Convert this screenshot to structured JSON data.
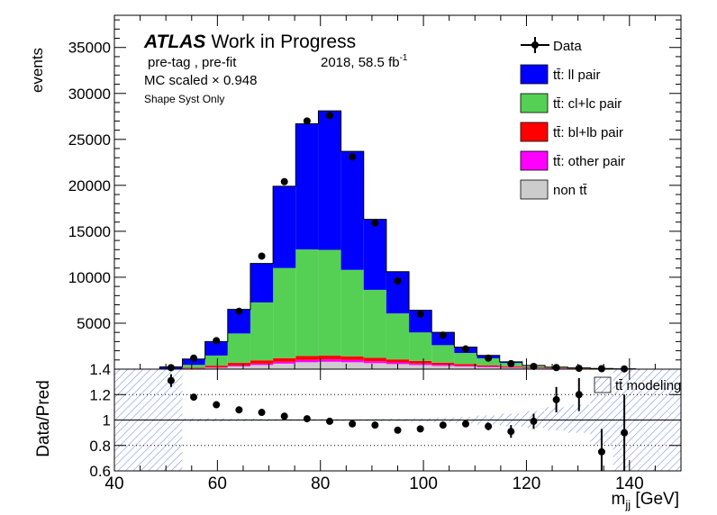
{
  "chart_data": {
    "type": "bar",
    "stacked": true,
    "title_lines": {
      "atlas": "ATLAS",
      "status": "Work in Progress",
      "selection": "pre-tag ,  pre-fit",
      "lumi": "2018, 58.5 fb",
      "lumi_sup": "-1",
      "mc_scale": "MC scaled × 0.948",
      "syst": "Shape Syst Only"
    },
    "xlabel_main": "m",
    "xlabel_sub": "jj",
    "xlabel_unit": " [GeV]",
    "ylabel_top": "events",
    "ylabel_bottom": "Data/Pred",
    "xlim": [
      40,
      150
    ],
    "ylim_top": [
      0,
      38500
    ],
    "ylim_bottom": [
      0.6,
      1.4
    ],
    "xticks": [
      40,
      60,
      80,
      100,
      120,
      140
    ],
    "yticks_top": [
      5000,
      10000,
      15000,
      20000,
      25000,
      30000,
      35000
    ],
    "yticks_bottom": [
      0.6,
      0.8,
      1,
      1.2,
      1.4
    ],
    "yticks_bottom_labels": [
      "0.6",
      "0.8",
      "1",
      "1.2",
      "1.4"
    ],
    "bin_edges": [
      40,
      44.4,
      48.8,
      53.2,
      57.6,
      62,
      66.4,
      70.8,
      75.2,
      79.6,
      84,
      88.4,
      92.8,
      97.2,
      101.6,
      106,
      110.4,
      114.8,
      119.2,
      123.6,
      128,
      132.4,
      136.8,
      141.2,
      145.6,
      150
    ],
    "bin_centers": [
      42.2,
      46.6,
      51,
      55.4,
      59.8,
      64.2,
      68.6,
      73,
      77.4,
      81.8,
      86.2,
      90.6,
      95,
      99.4,
      103.8,
      108.2,
      112.6,
      117,
      121.4,
      125.8,
      130.2,
      134.6,
      139,
      143.4,
      147.8
    ],
    "series": [
      {
        "name": "non tt̄",
        "color": "#cccccc",
        "values": [
          0,
          0,
          5,
          60,
          150,
          300,
          450,
          600,
          750,
          800,
          750,
          650,
          550,
          450,
          350,
          280,
          210,
          150,
          100,
          70,
          45,
          30,
          15,
          5,
          0
        ]
      },
      {
        "name": "tt̄: other pair",
        "color": "#ff00ff",
        "values": [
          0,
          0,
          0,
          20,
          50,
          100,
          150,
          200,
          250,
          260,
          250,
          220,
          190,
          160,
          130,
          100,
          80,
          60,
          40,
          25,
          15,
          10,
          5,
          0,
          0
        ]
      },
      {
        "name": "tt̄: bl+lb pair",
        "color": "#ff0000",
        "values": [
          0,
          0,
          5,
          80,
          180,
          280,
          360,
          400,
          420,
          420,
          400,
          360,
          320,
          280,
          230,
          180,
          130,
          90,
          60,
          40,
          25,
          15,
          8,
          0,
          0
        ]
      },
      {
        "name": "tt̄: cl+lc pair",
        "color": "#55d055",
        "values": [
          0,
          0,
          40,
          300,
          1100,
          3200,
          6300,
          9800,
          11600,
          11500,
          9400,
          7400,
          5000,
          3100,
          1900,
          1200,
          760,
          370,
          170,
          85,
          45,
          20,
          10,
          0,
          0
        ]
      },
      {
        "name": "tt̄: ll pair",
        "color": "#0000ff",
        "values": [
          0,
          0,
          190,
          640,
          1520,
          2620,
          4240,
          8900,
          13680,
          15120,
          12900,
          7670,
          4540,
          2410,
          1390,
          640,
          320,
          130,
          30,
          0,
          0,
          0,
          0,
          0,
          0
        ]
      }
    ],
    "data_label": "Data",
    "data_points": [
      {
        "x": 51,
        "y": 160
      },
      {
        "x": 55.4,
        "y": 1200
      },
      {
        "x": 59.8,
        "y": 3100
      },
      {
        "x": 64.2,
        "y": 6300
      },
      {
        "x": 68.6,
        "y": 12300
      },
      {
        "x": 73,
        "y": 20400
      },
      {
        "x": 77.4,
        "y": 27000
      },
      {
        "x": 81.8,
        "y": 27600
      },
      {
        "x": 86.2,
        "y": 23100
      },
      {
        "x": 90.6,
        "y": 15900
      },
      {
        "x": 95,
        "y": 9600
      },
      {
        "x": 99.4,
        "y": 6000
      },
      {
        "x": 103.8,
        "y": 3700
      },
      {
        "x": 108.2,
        "y": 2200
      },
      {
        "x": 112.6,
        "y": 1200
      },
      {
        "x": 117,
        "y": 600
      },
      {
        "x": 121.4,
        "y": 300
      },
      {
        "x": 125.8,
        "y": 170
      },
      {
        "x": 130.2,
        "y": 90
      },
      {
        "x": 134.6,
        "y": 50
      },
      {
        "x": 139,
        "y": 30
      }
    ],
    "ratio_points": [
      {
        "x": 51,
        "y": 1.31,
        "err": 0.05
      },
      {
        "x": 55.4,
        "y": 1.18,
        "err": 0.01
      },
      {
        "x": 59.8,
        "y": 1.12,
        "err": 0.01
      },
      {
        "x": 64.2,
        "y": 1.08,
        "err": 0.01
      },
      {
        "x": 68.6,
        "y": 1.06,
        "err": 0.01
      },
      {
        "x": 73,
        "y": 1.03,
        "err": 0.01
      },
      {
        "x": 77.4,
        "y": 1.01,
        "err": 0.01
      },
      {
        "x": 81.8,
        "y": 0.99,
        "err": 0.01
      },
      {
        "x": 86.2,
        "y": 0.97,
        "err": 0.01
      },
      {
        "x": 90.6,
        "y": 0.96,
        "err": 0.01
      },
      {
        "x": 95,
        "y": 0.92,
        "err": 0.01
      },
      {
        "x": 99.4,
        "y": 0.93,
        "err": 0.01
      },
      {
        "x": 103.8,
        "y": 0.96,
        "err": 0.015
      },
      {
        "x": 108.2,
        "y": 0.97,
        "err": 0.02
      },
      {
        "x": 112.6,
        "y": 0.95,
        "err": 0.03
      },
      {
        "x": 117,
        "y": 0.91,
        "err": 0.05
      },
      {
        "x": 121.4,
        "y": 0.99,
        "err": 0.06
      },
      {
        "x": 125.8,
        "y": 1.16,
        "err": 0.1
      },
      {
        "x": 130.2,
        "y": 1.2,
        "err": 0.13
      },
      {
        "x": 134.6,
        "y": 0.75,
        "err": 0.18
      },
      {
        "x": 139,
        "y": 0.9,
        "err": 0.3
      }
    ],
    "syst_band": [
      {
        "x0": 40,
        "x1": 48.8,
        "lo": 0.6,
        "hi": 1.4
      },
      {
        "x0": 48.8,
        "x1": 53.2,
        "lo": 0.6,
        "hi": 1.4
      },
      {
        "x0": 53.2,
        "x1": 57.6,
        "lo": 0.985,
        "hi": 1.015
      },
      {
        "x0": 57.6,
        "x1": 62,
        "lo": 0.985,
        "hi": 1.015
      },
      {
        "x0": 62,
        "x1": 66.4,
        "lo": 0.99,
        "hi": 1.01
      },
      {
        "x0": 66.4,
        "x1": 70.8,
        "lo": 0.99,
        "hi": 1.01
      },
      {
        "x0": 70.8,
        "x1": 75.2,
        "lo": 0.993,
        "hi": 1.007
      },
      {
        "x0": 75.2,
        "x1": 79.6,
        "lo": 0.993,
        "hi": 1.007
      },
      {
        "x0": 79.6,
        "x1": 84,
        "lo": 0.993,
        "hi": 1.007
      },
      {
        "x0": 84,
        "x1": 88.4,
        "lo": 0.993,
        "hi": 1.007
      },
      {
        "x0": 88.4,
        "x1": 92.8,
        "lo": 0.99,
        "hi": 1.01
      },
      {
        "x0": 92.8,
        "x1": 97.2,
        "lo": 0.99,
        "hi": 1.01
      },
      {
        "x0": 97.2,
        "x1": 101.6,
        "lo": 0.985,
        "hi": 1.015
      },
      {
        "x0": 101.6,
        "x1": 106,
        "lo": 0.98,
        "hi": 1.02
      },
      {
        "x0": 106,
        "x1": 110.4,
        "lo": 0.975,
        "hi": 1.025
      },
      {
        "x0": 110.4,
        "x1": 114.8,
        "lo": 0.965,
        "hi": 1.035
      },
      {
        "x0": 114.8,
        "x1": 119.2,
        "lo": 0.95,
        "hi": 1.05
      },
      {
        "x0": 119.2,
        "x1": 123.6,
        "lo": 0.94,
        "hi": 1.07
      },
      {
        "x0": 123.6,
        "x1": 128,
        "lo": 0.92,
        "hi": 1.1
      },
      {
        "x0": 128,
        "x1": 132.4,
        "lo": 0.9,
        "hi": 1.12
      },
      {
        "x0": 132.4,
        "x1": 136.8,
        "lo": 0.8,
        "hi": 1.2
      },
      {
        "x0": 136.8,
        "x1": 141.2,
        "lo": 0.6,
        "hi": 1.4
      },
      {
        "x0": 141.2,
        "x1": 145.6,
        "lo": 0.6,
        "hi": 1.4
      },
      {
        "x0": 145.6,
        "x1": 150,
        "lo": 0.6,
        "hi": 1.4
      }
    ],
    "ratio_legend": "tt̄ modeling",
    "legend_position": "top-right",
    "grid": false
  }
}
